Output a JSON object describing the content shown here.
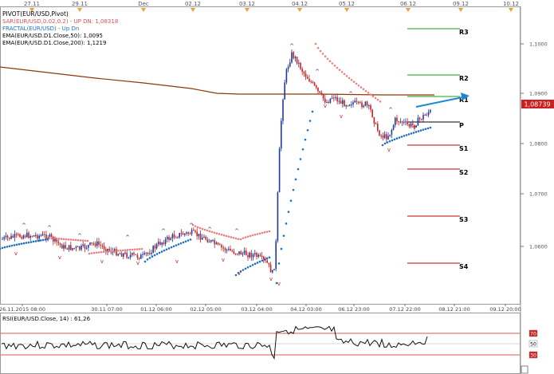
{
  "top_axis": {
    "labels": [
      "27.11",
      "29.11",
      "Dec",
      "02.12",
      "03.12",
      "04.12",
      "05.12",
      "06.12",
      "09.12",
      "10.12"
    ]
  },
  "legend": {
    "line1": "PIVOT(EUR/USD,Pivot)",
    "line2": "SAR(EUR/USD,0.02,0.2) - UP  DN: 1,08318",
    "line3": "FRACTAL(EUR/USD) - Up  Dn",
    "line4": "EMA(EUR/USD.D1.Close,50): 1,0095",
    "line5": "EMA(EUR/USD.D1.Close,200): 1,1219"
  },
  "pivots": [
    {
      "name": "R3",
      "label": "R3",
      "color": "#1a9a1a"
    },
    {
      "name": "R2",
      "label": "R2",
      "color": "#1a9a1a"
    },
    {
      "name": "R1",
      "label": "R1",
      "color": "#1a9a1a"
    },
    {
      "name": "P",
      "label": "P",
      "color": "#000000"
    },
    {
      "name": "S1",
      "label": "S1",
      "color": "#c00000"
    },
    {
      "name": "S2",
      "label": "S2",
      "color": "#c00000"
    },
    {
      "name": "S3",
      "label": "S3",
      "color": "#c00000"
    },
    {
      "name": "S4",
      "label": "S4",
      "color": "#c00000"
    }
  ],
  "price_axis": {
    "labels": [
      "1,1000",
      "1,0900",
      "1,0800",
      "1,0700",
      "1,0600"
    ],
    "current_price": "1,08739"
  },
  "time_axis": {
    "labels": [
      "26.11.2015 08:00",
      "30.11 07:00",
      "01.12 06:00",
      "02.12 05:00",
      "03.12 04:00",
      "04.12 03:00",
      "06.12 23:00",
      "07.12 22:00",
      "08.12 21:00",
      "09.12 20:00"
    ]
  },
  "rsi": {
    "title": "RSI(EUR/USD.Close, 14) : 61,26",
    "levels": [
      "70",
      "50",
      "30"
    ]
  },
  "colors": {
    "bull": "#1f3a9c",
    "bear": "#cc1f1f",
    "sar_up": "#1c6fc4",
    "sar_down": "#f08080",
    "ema200": "#8b3a0a",
    "ema50": "#8b3a0a",
    "rsi_line": "#111111",
    "rsi_level": "#cc2222",
    "axis_marker": "#f0a030"
  }
}
